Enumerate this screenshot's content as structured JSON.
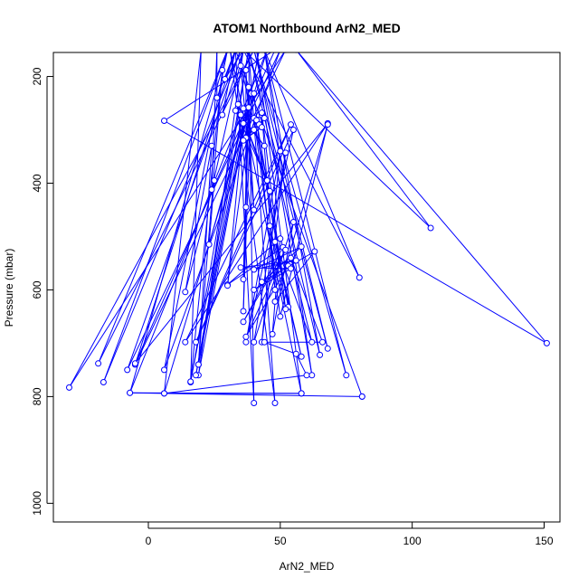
{
  "chart_data": {
    "type": "line",
    "title": "ATOM1 Northbound ArN2_MED",
    "xlabel": "ArN2_MED",
    "ylabel": "Pressure (mbar)",
    "xlim": [
      -36,
      156
    ],
    "ylim": [
      1035,
      155
    ],
    "y_reversed": true,
    "x_ticks": [
      0,
      50,
      100,
      150
    ],
    "x_tick_labels": [
      "0",
      "50",
      "100",
      "150"
    ],
    "y_ticks": [
      200,
      400,
      600,
      800,
      1000
    ],
    "y_tick_labels": [
      "200",
      "400",
      "600",
      "800",
      "1000"
    ],
    "grid": false,
    "legend": "none",
    "series_color": "#0000ff",
    "series": [
      {
        "points": [
          [
            81,
            800
          ],
          [
            33,
            150
          ],
          [
            -5,
            740
          ],
          [
            52,
            150
          ],
          [
            -30,
            783
          ],
          [
            40,
            150
          ],
          [
            -19,
            738
          ],
          [
            30,
            150
          ],
          [
            -17,
            773
          ],
          [
            35,
            150
          ],
          [
            -8,
            750
          ],
          [
            50,
            150
          ],
          [
            6,
            750
          ],
          [
            30,
            150
          ],
          [
            -7,
            793
          ],
          [
            45,
            150
          ],
          [
            6,
            794
          ],
          [
            20,
            150
          ],
          [
            16,
            773
          ],
          [
            38,
            150
          ],
          [
            19,
            740
          ],
          [
            42,
            150
          ],
          [
            19,
            760
          ],
          [
            36,
            150
          ],
          [
            24,
            412
          ],
          [
            26,
            150
          ],
          [
            26,
            240
          ],
          [
            33,
            150
          ],
          [
            28,
            272
          ],
          [
            36,
            150
          ],
          [
            29,
            205
          ],
          [
            33,
            150
          ],
          [
            40,
            812
          ],
          [
            38,
            150
          ],
          [
            48,
            812
          ],
          [
            31,
            150
          ],
          [
            58,
            794
          ],
          [
            41,
            150
          ],
          [
            62,
            760
          ],
          [
            44,
            150
          ],
          [
            65,
            722
          ],
          [
            38,
            150
          ],
          [
            68,
            710
          ],
          [
            40,
            150
          ],
          [
            75,
            760
          ],
          [
            44,
            150
          ],
          [
            80,
            577
          ],
          [
            36,
            150
          ],
          [
            107,
            484
          ],
          [
            56,
            150
          ],
          [
            151,
            700
          ],
          [
            6,
            283
          ],
          [
            48,
            150
          ],
          [
            -5,
            738
          ],
          [
            68,
            288
          ],
          [
            14,
            698
          ],
          [
            54,
            290
          ],
          [
            18,
            698
          ],
          [
            55,
            300
          ],
          [
            37,
            698
          ],
          [
            50,
            340
          ],
          [
            43,
            698
          ],
          [
            52,
            343
          ],
          [
            40,
            698
          ],
          [
            55,
            473
          ],
          [
            47,
            683
          ],
          [
            50,
            504
          ],
          [
            30,
            590
          ],
          [
            51,
            520
          ],
          [
            36,
            660
          ],
          [
            52,
            525
          ],
          [
            37,
            688
          ],
          [
            53,
            555
          ],
          [
            40,
            600
          ],
          [
            54,
            560
          ],
          [
            35,
            558
          ],
          [
            56,
            545
          ],
          [
            40,
            562
          ],
          [
            58,
            519
          ],
          [
            43,
            585
          ],
          [
            63,
            528
          ],
          [
            48,
            622
          ],
          [
            68,
            290
          ],
          [
            50,
            650
          ],
          [
            40,
            278
          ],
          [
            53,
            632
          ],
          [
            41,
            282
          ],
          [
            40,
            300
          ],
          [
            42,
            290
          ],
          [
            37,
            315
          ],
          [
            43,
            295
          ],
          [
            36,
            320
          ],
          [
            44,
            278
          ],
          [
            35,
            272
          ],
          [
            44,
            330
          ],
          [
            33,
            264
          ],
          [
            45,
            395
          ],
          [
            34,
            252
          ],
          [
            46,
            415
          ],
          [
            35,
            180
          ],
          [
            40,
            450
          ],
          [
            37,
            188
          ],
          [
            37,
            445
          ],
          [
            38,
            220
          ],
          [
            36,
            580
          ],
          [
            38,
            258
          ],
          [
            36,
            640
          ],
          [
            39,
            232
          ],
          [
            23,
            515
          ],
          [
            25,
            395
          ],
          [
            14,
            604
          ],
          [
            24,
            330
          ],
          [
            19,
            740
          ],
          [
            28,
            188
          ],
          [
            16,
            772
          ],
          [
            36,
            260
          ],
          [
            18,
            760
          ],
          [
            36,
            288
          ],
          [
            30,
            592
          ],
          [
            40,
            232
          ],
          [
            48,
            600
          ],
          [
            43,
            268
          ],
          [
            52,
            636
          ],
          [
            46,
            480
          ],
          [
            58,
            725
          ],
          [
            48,
            510
          ],
          [
            62,
            698
          ],
          [
            54,
            540
          ],
          [
            66,
            698
          ],
          [
            44,
            698
          ],
          [
            56,
            720
          ],
          [
            60,
            760
          ],
          [
            6,
            794
          ],
          [
            58,
            794
          ],
          [
            -7,
            793
          ],
          [
            81,
            800
          ]
        ]
      }
    ]
  }
}
